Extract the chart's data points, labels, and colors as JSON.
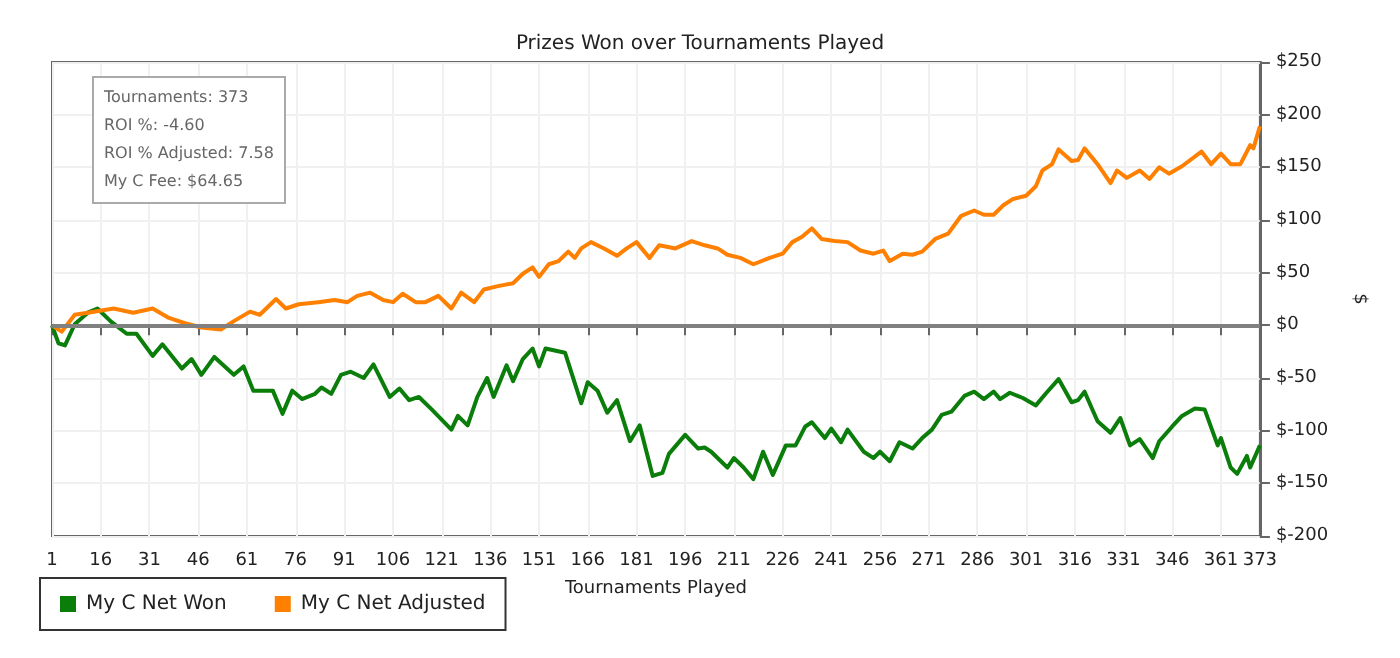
{
  "chart_data": {
    "type": "line",
    "title": "Prizes Won over Tournaments Played",
    "xlabel": "Tournaments Played",
    "ylabel": "$",
    "annotations": [
      "Tournaments: 373",
      "ROI %: -4.60",
      "ROI % Adjusted: 7.58",
      "My C Fee: $64.65"
    ],
    "xlim": [
      1,
      373
    ],
    "xticks": [
      1,
      16,
      31,
      46,
      61,
      76,
      91,
      106,
      121,
      136,
      151,
      166,
      181,
      196,
      211,
      226,
      241,
      256,
      271,
      286,
      301,
      316,
      331,
      346,
      361,
      373
    ],
    "ylim": [
      -200,
      250
    ],
    "yticks": [
      {
        "value": -200,
        "label": "$-200"
      },
      {
        "value": -150,
        "label": "$-150"
      },
      {
        "value": -100,
        "label": "$-100"
      },
      {
        "value": -50,
        "label": "$-50"
      },
      {
        "value": 0,
        "label": "$0"
      },
      {
        "value": 50,
        "label": "$50"
      },
      {
        "value": 100,
        "label": "$100"
      },
      {
        "value": 150,
        "label": "$150"
      },
      {
        "value": 200,
        "label": "$200"
      },
      {
        "value": 250,
        "label": "$250"
      }
    ],
    "grid": true,
    "legend": "bottom left",
    "marker": "none",
    "line_style": "solid",
    "ref_lines": [
      {
        "axis": "y",
        "value": 0,
        "color": "#808080"
      }
    ],
    "series": [
      {
        "name": "My C Net Won",
        "color": "#0a7d0a",
        "x": [
          1,
          3,
          5,
          8,
          12,
          15,
          19,
          24,
          27,
          32,
          35,
          41,
          44,
          47,
          51,
          57,
          60,
          63,
          69,
          72,
          75,
          78,
          82,
          84,
          87,
          90,
          93,
          97,
          100,
          105,
          108,
          111,
          114,
          118,
          124,
          126,
          129,
          132,
          135,
          137,
          141,
          143,
          146,
          149,
          151,
          153,
          159,
          164,
          166,
          169,
          172,
          175,
          179,
          182,
          186,
          189,
          191,
          196,
          200,
          202,
          204,
          209,
          211,
          214,
          217,
          220,
          223,
          227,
          230,
          233,
          235,
          239,
          241,
          244,
          246,
          251,
          254,
          256,
          259,
          262,
          266,
          269,
          272,
          275,
          278,
          282,
          285,
          288,
          291,
          293,
          296,
          300,
          304,
          307,
          311,
          315,
          317,
          319,
          323,
          327,
          330,
          333,
          336,
          340,
          342,
          346,
          349,
          353,
          356,
          360,
          361,
          364,
          366,
          369,
          370,
          373
        ],
        "values": [
          0,
          -17,
          -19,
          1,
          12,
          16,
          4,
          -8,
          -8,
          -29,
          -18,
          -41,
          -32,
          -47,
          -30,
          -47,
          -39,
          -62,
          -62,
          -84,
          -62,
          -70,
          -65,
          -59,
          -65,
          -47,
          -44,
          -50,
          -37,
          -68,
          -60,
          -71,
          -68,
          -80,
          -99,
          -86,
          -95,
          -68,
          -50,
          -68,
          -38,
          -53,
          -32,
          -22,
          -39,
          -22,
          -26,
          -74,
          -54,
          -62,
          -83,
          -71,
          -110,
          -95,
          -143,
          -140,
          -122,
          -104,
          -117,
          -116,
          -120,
          -135,
          -126,
          -135,
          -146,
          -120,
          -142,
          -114,
          -114,
          -96,
          -92,
          -107,
          -98,
          -111,
          -99,
          -120,
          -126,
          -120,
          -129,
          -111,
          -117,
          -107,
          -99,
          -85,
          -82,
          -67,
          -63,
          -70,
          -63,
          -70,
          -64,
          -69,
          -76,
          -65,
          -51,
          -73,
          -71,
          -63,
          -91,
          -102,
          -88,
          -114,
          -108,
          -126,
          -110,
          -96,
          -86,
          -79,
          -80,
          -114,
          -107,
          -135,
          -141,
          -124,
          -135,
          -114
        ]
      },
      {
        "name": "My C Net Adjusted",
        "color": "#ff8000",
        "x": [
          1,
          4,
          8,
          12,
          20,
          26,
          32,
          37,
          42,
          47,
          53,
          57,
          62,
          65,
          70,
          73,
          77,
          83,
          88,
          92,
          95,
          99,
          103,
          106,
          109,
          113,
          116,
          120,
          124,
          127,
          131,
          134,
          138,
          143,
          146,
          149,
          151,
          154,
          157,
          160,
          162,
          164,
          167,
          171,
          175,
          178,
          181,
          185,
          188,
          193,
          198,
          202,
          206,
          209,
          213,
          217,
          222,
          226,
          229,
          232,
          235,
          238,
          242,
          246,
          250,
          254,
          257,
          259,
          263,
          266,
          269,
          273,
          277,
          281,
          285,
          288,
          291,
          294,
          297,
          301,
          304,
          306,
          309,
          311,
          315,
          317,
          319,
          323,
          327,
          329,
          332,
          336,
          339,
          342,
          345,
          349,
          355,
          358,
          361,
          364,
          367,
          370,
          371,
          373
        ],
        "values": [
          0,
          -6,
          10,
          12,
          16,
          12,
          16,
          7,
          2,
          -2,
          -4,
          4,
          13,
          10,
          25,
          16,
          20,
          22,
          24,
          22,
          28,
          31,
          24,
          22,
          30,
          22,
          22,
          28,
          16,
          31,
          22,
          34,
          37,
          40,
          49,
          55,
          46,
          58,
          61,
          70,
          64,
          73,
          79,
          73,
          66,
          73,
          79,
          64,
          76,
          73,
          80,
          76,
          73,
          67,
          64,
          58,
          64,
          68,
          79,
          84,
          92,
          82,
          80,
          79,
          71,
          68,
          71,
          61,
          68,
          67,
          70,
          82,
          87,
          104,
          109,
          105,
          105,
          114,
          120,
          123,
          132,
          147,
          153,
          167,
          156,
          157,
          168,
          153,
          135,
          147,
          140,
          147,
          139,
          150,
          144,
          151,
          165,
          153,
          163,
          153,
          153,
          171,
          168,
          189
        ]
      }
    ]
  }
}
